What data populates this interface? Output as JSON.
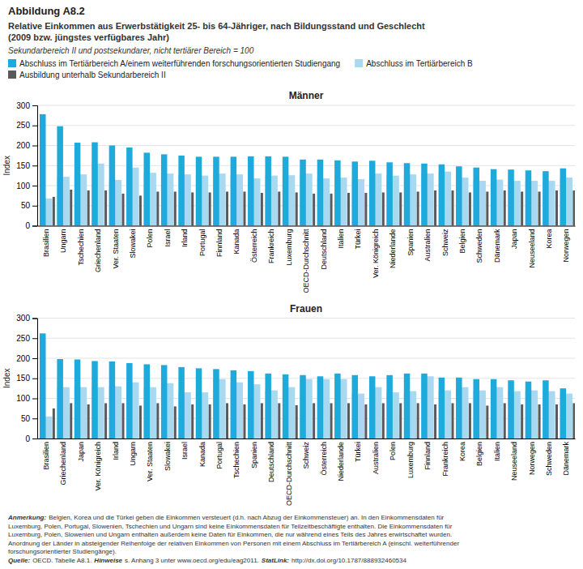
{
  "title": "Abbildung A8.2",
  "subtitle": "Relative Einkommen aus Erwerbstätigkeit 25- bis 64-Jähriger, nach Bildungsstand und Geschlecht\n(2009 bzw. jüngstes verfügbares Jahr)",
  "annotations": [
    "Sekundarbereich II und postsekundarer, nicht tertiärer Bereich = 100",
    "Anmerkung:",
    "Belgien, Korea und die Türkei geben die Einkommen versteuert (d.h. nach Abzug der Einkommensteuer) an. In den Einkommensdaten für\nLuxemburg, Polen, Portugal, Slowenien, Tschechien und Ungarn sind keine Einkommensdaten für Teilzeitbeschäftigte enthalten. Die Einkommensdaten für\nLuxemburg, Polen, Slowenien und Ungarn enthalten außerdem keine Daten für Einkommen, die nur während eines Teils des Jahres erwirtschaftet wurden.\nAnordnung der Länder in absteigender Reihenfolge der relativen Einkommen von Personen mit einem Abschluss im Tertiärbereich A (einschl. weiterführender\nforschungsorientierter Studiengänge).",
    "Quelle:",
    "OECD. Tabelle A8.1.",
    "Hinweise",
    "s. Anhang 3 unter www.oecd.org/edu/eag2011.",
    "StatLink:",
    "http://dx.doi.org/10.1787/888932460534"
  ],
  "chart_data": [
    {
      "type": "bar",
      "title": "Männer",
      "y_label": "Index",
      "legend": "top",
      "grid": true,
      "ylim": [
        0,
        300
      ],
      "yticks": [
        0,
        50,
        100,
        150,
        200,
        250,
        300
      ],
      "categories": [
        "Brasilien",
        "Ungarn",
        "Tschechien",
        "Griechenland",
        "Ver. Staaten",
        "Slowakei",
        "Polen",
        "Israel",
        "Irland",
        "Portugal",
        "Finnland",
        "Kanada",
        "Österreich",
        "Frankreich",
        "Luxemburg",
        "OECD-Durchschnitt",
        "Deutschland",
        "Italien",
        "Türkei",
        "Ver. Königreich",
        "Niederlande",
        "Spanien",
        "Australien",
        "Schweiz",
        "Belgien",
        "Schweden",
        "Dänemark",
        "Japan",
        "Neuseeland",
        "Korea",
        "Norwegen"
      ],
      "series": [
        {
          "name": "Abschluss im Tertiärbereich A/einem weiterführenden forschungsorientierten Studiengang",
          "color": "#1FAADC",
          "values": [
            278,
            248,
            207,
            208,
            200,
            195,
            182,
            178,
            175,
            172,
            172,
            172,
            173,
            173,
            172,
            165,
            165,
            163,
            160,
            162,
            158,
            156,
            155,
            153,
            148,
            145,
            141,
            140,
            138,
            136,
            143
          ]
        },
        {
          "name": "Abschluss im Tertiärbereich B",
          "color": "#A8D9F0",
          "values": [
            68,
            122,
            128,
            155,
            114,
            145,
            132,
            130,
            128,
            125,
            130,
            128,
            118,
            125,
            126,
            130,
            118,
            120,
            116,
            130,
            125,
            128,
            130,
            135,
            120,
            112,
            115,
            112,
            112,
            112,
            120
          ]
        },
        {
          "name": "Ausbildung unterhalb Sekundarbereich II",
          "color": "#5A5A5A",
          "values": [
            72,
            90,
            88,
            88,
            80,
            75,
            85,
            85,
            83,
            83,
            85,
            85,
            82,
            85,
            83,
            80,
            80,
            82,
            82,
            83,
            83,
            85,
            88,
            88,
            83,
            85,
            88,
            85,
            85,
            88,
            88
          ]
        }
      ]
    },
    {
      "type": "bar",
      "title": "Frauen",
      "y_label": "Index",
      "grid": true,
      "ylim": [
        0,
        300
      ],
      "yticks": [
        0,
        50,
        100,
        150,
        200,
        250,
        300
      ],
      "categories": [
        "Brasilien",
        "Griechenland",
        "Japan",
        "Ver. Königreich",
        "Irland",
        "Ungarn",
        "Ver. Staaten",
        "Slowakei",
        "Israel",
        "Kanada",
        "Portugal",
        "Tschechien",
        "Spanien",
        "Deutschland",
        "OECD-Durchschnitt",
        "Schweiz",
        "Österreich",
        "Niederlande",
        "Türkei",
        "Australien",
        "Polen",
        "Luxemburg",
        "Finnland",
        "Frankreich",
        "Korea",
        "Belgien",
        "Italien",
        "Neuseeland",
        "Norwegen",
        "Schweden",
        "Dänemark"
      ],
      "series": [
        {
          "color": "#1FAADC",
          "values": [
            262,
            198,
            197,
            193,
            192,
            188,
            185,
            183,
            178,
            175,
            173,
            170,
            168,
            162,
            160,
            158,
            155,
            162,
            158,
            155,
            158,
            162,
            162,
            152,
            152,
            148,
            148,
            145,
            142,
            145,
            125
          ]
        },
        {
          "color": "#A8D9F0",
          "values": [
            55,
            128,
            128,
            128,
            130,
            140,
            128,
            138,
            115,
            115,
            148,
            140,
            135,
            120,
            128,
            148,
            148,
            148,
            112,
            128,
            115,
            118,
            155,
            120,
            128,
            120,
            128,
            118,
            120,
            118,
            112
          ]
        },
        {
          "color": "#5A5A5A",
          "values": [
            75,
            88,
            85,
            88,
            88,
            82,
            88,
            80,
            85,
            85,
            88,
            85,
            88,
            88,
            83,
            88,
            88,
            88,
            85,
            88,
            88,
            88,
            85,
            88,
            88,
            82,
            88,
            85,
            85,
            85,
            88
          ]
        }
      ]
    }
  ]
}
